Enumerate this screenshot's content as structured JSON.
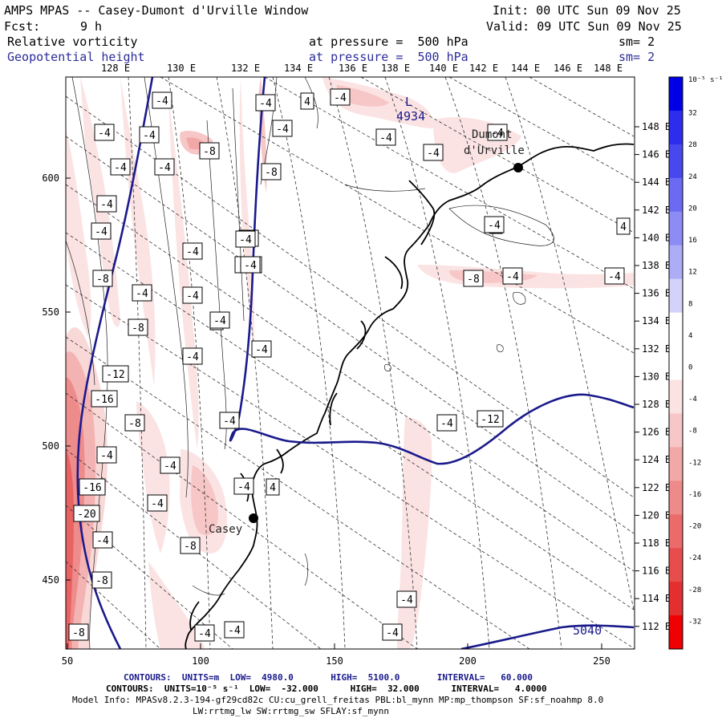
{
  "header": {
    "title": "AMPS MPAS -- Casey-Dumont d'Urville Window",
    "init": "Init: 00 UTC Sun 09 Nov 25",
    "fcst_label": "Fcst:",
    "fcst_value": "9 h",
    "valid": "Valid: 09 UTC Sun 09 Nov 25",
    "field1_name": "Relative vorticity",
    "field1_level": "at pressure =  500 hPa",
    "field1_sm": "sm= 2",
    "field2_name": "Geopotential height",
    "field2_level": "at pressure =  500 hPa",
    "field2_sm": "sm= 2"
  },
  "axes": {
    "top_lon_labels": [
      "128 E",
      "130 E",
      "132 E",
      "134 E",
      "136 E",
      "138 E",
      "140 E",
      "142 E",
      "144 E",
      "146 E",
      "148 E"
    ],
    "right_lon_labels": [
      "148 E",
      "146 E",
      "144 E",
      "142 E",
      "140 E",
      "138 E",
      "136 E",
      "134 E",
      "132 E",
      "130 E",
      "128 E",
      "126 E",
      "124 E",
      "122 E",
      "120 E",
      "118 E",
      "116 E",
      "114 E",
      "112 E"
    ],
    "x_ticks": [
      "50",
      "100",
      "150",
      "200",
      "250"
    ],
    "y_ticks": [
      "600",
      "550",
      "500",
      "450"
    ]
  },
  "colorbar": {
    "unit": "10⁻⁵ s⁻¹",
    "labels": [
      "32",
      "28",
      "24",
      "20",
      "16",
      "12",
      "8",
      "4",
      "0",
      "-4",
      "-8",
      "-12",
      "-16",
      "-20",
      "-24",
      "-28",
      "-32"
    ],
    "colors": [
      "#0000e6",
      "#2d2ded",
      "#4848ef",
      "#6a6af2",
      "#8c8cf4",
      "#adadf7",
      "#d2d2fa",
      "#ffffff",
      "#ffffff",
      "#fbe3e3",
      "#f7c6c6",
      "#f3a8a8",
      "#ef8a8a",
      "#eb6b6b",
      "#e74d4d",
      "#e32f2f",
      "#f00000"
    ]
  },
  "map": {
    "contour_labels": [
      "-4",
      "-4",
      "4",
      "-4",
      "-8",
      "-4",
      "-4",
      "-4",
      "-4",
      "-4",
      "-8",
      "-8",
      "-4",
      "-4",
      "-4",
      "-8",
      "-4",
      "-4",
      "-4",
      "4",
      "-8",
      "-4",
      "-4",
      "-8",
      "-4",
      "4",
      "-4",
      "-4",
      "-4",
      "-4",
      "-12",
      "-16",
      "-8",
      "-4",
      "-4",
      "-4",
      "-12",
      "-4",
      "-16",
      "-4",
      "4",
      "-20",
      "-4",
      "-8",
      "-4",
      "-8",
      "-4",
      "-4",
      "-8",
      "-4",
      "-4",
      "-4",
      "-8",
      "-4",
      "-4",
      "4",
      "-4"
    ],
    "height_labels": [
      "4934",
      "5040"
    ],
    "low_marker": "L",
    "stations": [
      {
        "name_line1": "Dumont",
        "name_line2": "d'Urville"
      },
      {
        "name_line1": "Casey",
        "name_line2": ""
      }
    ]
  },
  "footer": {
    "contours1": "CONTOURS:  UNITS=m  LOW=  4980.0       HIGH=  5100.0       INTERVAL=   60.000",
    "contours2": "CONTOURS:  UNITS=10⁻⁵ s⁻¹  LOW=  -32.000      HIGH=  32.000      INTERVAL=   4.0000",
    "model_info1": "Model Info: MPASv8.2.3-194-gf29cd82c CU:cu_grell_freitas PBL:bl_mynn MP:mp_thompson SF:sf_noahmp 8.0",
    "model_info2": "LW:rrtmg_lw SW:rrtmg_sw SFLAY:sf_mynn"
  }
}
